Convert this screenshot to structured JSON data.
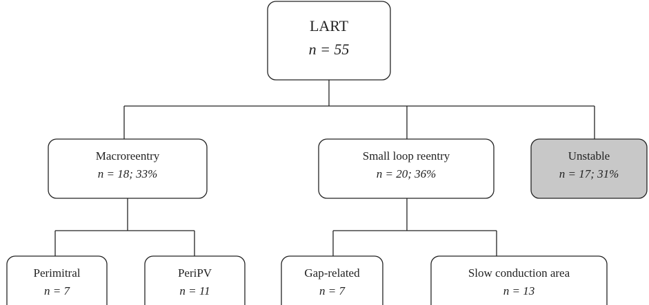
{
  "nodes": [
    {
      "label": "LART",
      "count": "n = 55"
    },
    {
      "label": "Macroreentry",
      "count": "n = 18; 33%"
    },
    {
      "label": "Small loop reentry",
      "count": "n = 20; 36%"
    },
    {
      "label": "Unstable",
      "count": "n = 17; 31%"
    },
    {
      "label": "Perimitral",
      "count": "n = 7"
    },
    {
      "label": "PeriPV",
      "count": "n = 11"
    },
    {
      "label": "Gap-related",
      "count": "n = 7"
    },
    {
      "label": "Slow conduction area",
      "count": "n = 13"
    }
  ]
}
